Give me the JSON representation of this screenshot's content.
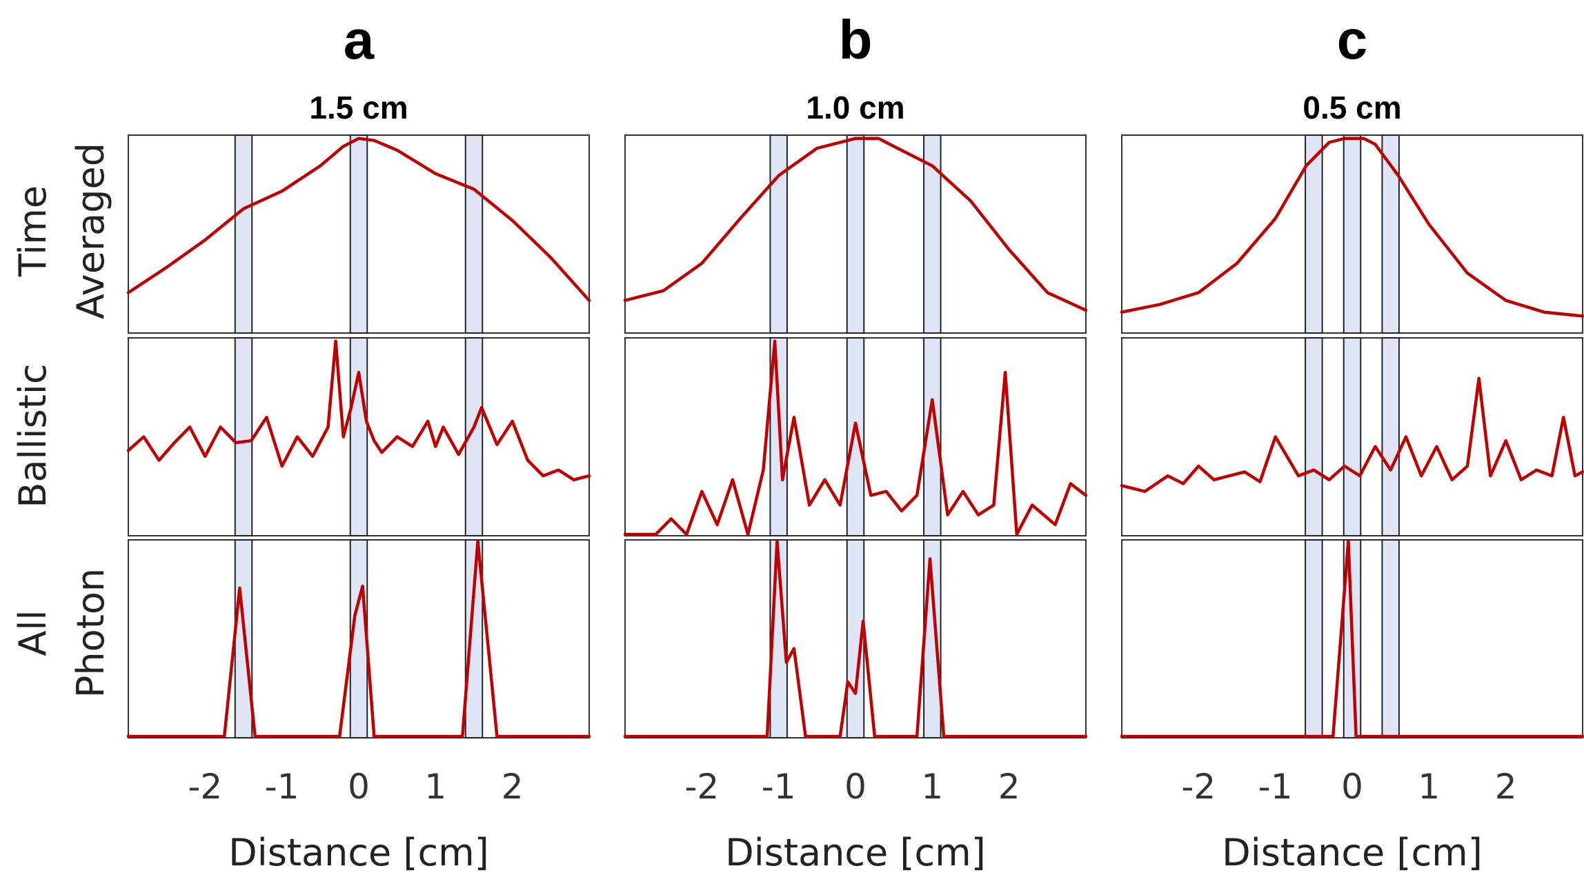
{
  "style": {
    "line_color": "#c00000",
    "band_fill": "#d6dcf3",
    "frame_color": "#333333"
  },
  "row_labels": [
    {
      "line1": "Time",
      "line2": "Averaged"
    },
    {
      "line1": "",
      "line2": "Ballistic"
    },
    {
      "line1": "All",
      "line2": "Photon"
    }
  ],
  "chart_data": [
    {
      "type": "line",
      "letter": "a",
      "title": "1.5 cm",
      "xlabel": "Distance [cm]",
      "xlim": [
        -3.0,
        3.0
      ],
      "xticks": [
        -2,
        -1,
        0,
        1,
        2
      ],
      "xtick_labels": [
        "-2",
        "-1",
        "0",
        "1",
        "2"
      ],
      "band_centers": [
        -1.5,
        0.0,
        1.5
      ],
      "band_width": 0.22,
      "panels": [
        {
          "row": "Time Averaged",
          "ylim": [
            0,
            1
          ],
          "x": [
            -3.0,
            -2.5,
            -2.0,
            -1.5,
            -1.0,
            -0.5,
            -0.2,
            0.0,
            0.2,
            0.5,
            1.0,
            1.5,
            2.0,
            2.5,
            3.0
          ],
          "y": [
            0.2,
            0.33,
            0.47,
            0.63,
            0.72,
            0.85,
            0.95,
            0.99,
            0.98,
            0.93,
            0.81,
            0.73,
            0.57,
            0.38,
            0.16
          ]
        },
        {
          "row": "Ballistic",
          "ylim": [
            0,
            1
          ],
          "x": [
            -3.0,
            -2.8,
            -2.6,
            -2.4,
            -2.2,
            -2.0,
            -1.8,
            -1.6,
            -1.4,
            -1.2,
            -1.0,
            -0.8,
            -0.6,
            -0.4,
            -0.3,
            -0.2,
            -0.1,
            0.0,
            0.1,
            0.2,
            0.3,
            0.5,
            0.7,
            0.9,
            1.0,
            1.1,
            1.3,
            1.5,
            1.6,
            1.8,
            2.0,
            2.2,
            2.4,
            2.6,
            2.8,
            3.0
          ],
          "y": [
            0.43,
            0.5,
            0.38,
            0.47,
            0.55,
            0.4,
            0.55,
            0.47,
            0.48,
            0.6,
            0.35,
            0.5,
            0.4,
            0.55,
            0.99,
            0.5,
            0.65,
            0.83,
            0.58,
            0.48,
            0.42,
            0.5,
            0.45,
            0.58,
            0.45,
            0.55,
            0.41,
            0.55,
            0.65,
            0.46,
            0.58,
            0.38,
            0.3,
            0.33,
            0.28,
            0.3
          ]
        },
        {
          "row": "All Photon",
          "ylim": [
            0,
            1
          ],
          "x": [
            -3.0,
            -1.75,
            -1.55,
            -1.35,
            -0.25,
            -0.05,
            0.05,
            0.2,
            1.35,
            1.55,
            1.8,
            3.0
          ],
          "y": [
            0.0,
            0.0,
            0.76,
            0.0,
            0.0,
            0.62,
            0.77,
            0.0,
            0.0,
            1.0,
            0.0,
            0.0
          ]
        }
      ]
    },
    {
      "type": "line",
      "letter": "b",
      "title": "1.0 cm",
      "xlabel": "Distance [cm]",
      "xlim": [
        -3.0,
        3.0
      ],
      "xticks": [
        -2,
        -1,
        0,
        1,
        2
      ],
      "xtick_labels": [
        "-2",
        "-1",
        "0",
        "1",
        "2"
      ],
      "band_centers": [
        -1.0,
        0.0,
        1.0
      ],
      "band_width": 0.22,
      "panels": [
        {
          "row": "Time Averaged",
          "ylim": [
            0,
            1
          ],
          "x": [
            -3.0,
            -2.5,
            -2.0,
            -1.5,
            -1.0,
            -0.5,
            0.0,
            0.3,
            0.5,
            1.0,
            1.5,
            2.0,
            2.5,
            3.0
          ],
          "y": [
            0.16,
            0.21,
            0.35,
            0.58,
            0.8,
            0.94,
            0.99,
            0.99,
            0.95,
            0.85,
            0.67,
            0.42,
            0.2,
            0.11
          ]
        },
        {
          "row": "Ballistic",
          "ylim": [
            0,
            1
          ],
          "x": [
            -3.0,
            -2.6,
            -2.4,
            -2.2,
            -2.0,
            -1.8,
            -1.6,
            -1.4,
            -1.2,
            -1.05,
            -0.95,
            -0.8,
            -0.6,
            -0.4,
            -0.2,
            0.0,
            0.2,
            0.4,
            0.6,
            0.8,
            1.0,
            1.2,
            1.4,
            1.6,
            1.8,
            1.95,
            2.1,
            2.3,
            2.6,
            2.8,
            3.0
          ],
          "y": [
            0.0,
            0.0,
            0.08,
            0.0,
            0.22,
            0.05,
            0.28,
            0.0,
            0.33,
            0.99,
            0.28,
            0.6,
            0.15,
            0.28,
            0.15,
            0.57,
            0.2,
            0.22,
            0.12,
            0.2,
            0.69,
            0.1,
            0.22,
            0.1,
            0.15,
            0.83,
            0.0,
            0.15,
            0.05,
            0.26,
            0.2
          ]
        },
        {
          "row": "All Photon",
          "ylim": [
            0,
            1
          ],
          "x": [
            -3.0,
            -1.15,
            -1.02,
            -0.9,
            -0.8,
            -0.65,
            -0.2,
            -0.1,
            0.0,
            0.1,
            0.25,
            0.8,
            0.97,
            1.15,
            3.0
          ],
          "y": [
            0.0,
            0.0,
            1.0,
            0.38,
            0.45,
            0.0,
            0.0,
            0.28,
            0.22,
            0.59,
            0.0,
            0.0,
            0.91,
            0.0,
            0.0
          ]
        }
      ]
    },
    {
      "type": "line",
      "letter": "c",
      "title": "0.5 cm",
      "xlabel": "Distance [cm]",
      "xlim": [
        -3.0,
        3.0
      ],
      "xticks": [
        -2,
        -1,
        0,
        1,
        2
      ],
      "xtick_labels": [
        "-2",
        "-1",
        "0",
        "1",
        "2"
      ],
      "band_centers": [
        -0.5,
        0.0,
        0.5
      ],
      "band_width": 0.22,
      "panels": [
        {
          "row": "Time Averaged",
          "ylim": [
            0,
            1
          ],
          "x": [
            -3.0,
            -2.5,
            -2.0,
            -1.5,
            -1.0,
            -0.6,
            -0.3,
            -0.1,
            0.0,
            0.15,
            0.3,
            0.6,
            1.0,
            1.5,
            2.0,
            2.5,
            3.0
          ],
          "y": [
            0.1,
            0.14,
            0.2,
            0.35,
            0.58,
            0.85,
            0.97,
            0.99,
            0.99,
            0.99,
            0.96,
            0.8,
            0.55,
            0.3,
            0.16,
            0.1,
            0.08
          ]
        },
        {
          "row": "Ballistic",
          "ylim": [
            0,
            1
          ],
          "x": [
            -3.0,
            -2.7,
            -2.4,
            -2.2,
            -2.0,
            -1.8,
            -1.6,
            -1.4,
            -1.2,
            -1.0,
            -0.7,
            -0.5,
            -0.3,
            -0.1,
            0.1,
            0.3,
            0.5,
            0.7,
            0.9,
            1.1,
            1.3,
            1.5,
            1.65,
            1.8,
            2.0,
            2.2,
            2.4,
            2.6,
            2.75,
            2.9,
            3.0
          ],
          "y": [
            0.25,
            0.22,
            0.3,
            0.26,
            0.35,
            0.28,
            0.3,
            0.32,
            0.27,
            0.5,
            0.3,
            0.33,
            0.28,
            0.35,
            0.3,
            0.45,
            0.33,
            0.5,
            0.3,
            0.45,
            0.28,
            0.35,
            0.8,
            0.3,
            0.48,
            0.28,
            0.33,
            0.3,
            0.6,
            0.3,
            0.32
          ]
        },
        {
          "row": "All Photon",
          "ylim": [
            0,
            1
          ],
          "x": [
            -3.0,
            -0.25,
            -0.05,
            0.05,
            3.0
          ],
          "y": [
            0.0,
            0.0,
            1.0,
            0.0,
            0.0
          ]
        }
      ]
    }
  ]
}
